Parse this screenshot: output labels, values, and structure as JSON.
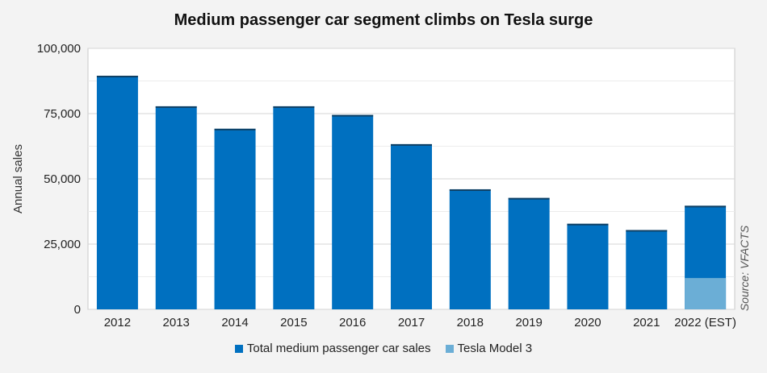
{
  "chart_data": {
    "type": "bar",
    "title": "Medium passenger car segment climbs on Tesla surge",
    "xlabel": "",
    "ylabel": "Annual sales",
    "categories": [
      "2012",
      "2013",
      "2014",
      "2015",
      "2016",
      "2017",
      "2018",
      "2019",
      "2020",
      "2021",
      "2022 (EST)"
    ],
    "series": [
      {
        "name": "Total medium passenger car sales",
        "color": "#0070c0",
        "values": [
          89500,
          77800,
          69200,
          77800,
          74500,
          63300,
          46000,
          42700,
          32800,
          30400,
          39700
        ]
      },
      {
        "name": "Tesla Model 3",
        "color": "#6baed6",
        "values": [
          null,
          null,
          null,
          null,
          null,
          null,
          null,
          null,
          null,
          null,
          12000
        ]
      }
    ],
    "ylim": [
      0,
      100000
    ],
    "yticks": [
      "0",
      "25,000",
      "50,000",
      "75,000",
      "100,000"
    ],
    "ytick_values": [
      0,
      25000,
      50000,
      75000,
      100000
    ],
    "grid": true,
    "legend_position": "bottom",
    "source_note": "Source: VFACTS"
  }
}
